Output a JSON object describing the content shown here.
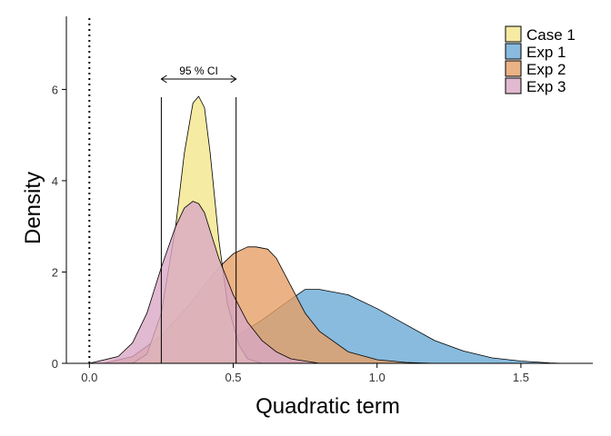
{
  "chart_data": {
    "type": "area",
    "xlabel": "Quadratic term",
    "ylabel": "Density",
    "xlim": [
      -0.08,
      1.75
    ],
    "ylim": [
      0,
      7.6
    ],
    "x_ticks": [
      0.0,
      0.5,
      1.0,
      1.5
    ],
    "x_tick_labels": [
      "0.0",
      "0.5",
      "1.0",
      "1.5"
    ],
    "y_ticks": [
      0,
      2,
      4,
      6
    ],
    "y_tick_labels": [
      "0",
      "2",
      "4",
      "6"
    ],
    "grid": false,
    "legend_position": "top-right",
    "reference_line": {
      "x": 0.0,
      "style": "dotted"
    },
    "ci": {
      "label": "95 % CI",
      "lower": 0.25,
      "upper": 0.51
    },
    "series": [
      {
        "name": "Exp 1",
        "color": "#6aaad4",
        "x": [
          0.1,
          0.2,
          0.3,
          0.4,
          0.5,
          0.6,
          0.7,
          0.75,
          0.8,
          0.9,
          1.0,
          1.1,
          1.2,
          1.3,
          1.4,
          1.5,
          1.6,
          1.65
        ],
        "y": [
          0.0,
          0.03,
          0.1,
          0.25,
          0.55,
          0.95,
          1.4,
          1.62,
          1.62,
          1.5,
          1.2,
          0.85,
          0.5,
          0.27,
          0.12,
          0.05,
          0.01,
          0.0
        ]
      },
      {
        "name": "Exp 2",
        "color": "#e6a066",
        "x": [
          0.05,
          0.15,
          0.25,
          0.35,
          0.45,
          0.5,
          0.55,
          0.58,
          0.62,
          0.65,
          0.7,
          0.75,
          0.8,
          0.9,
          1.0,
          1.1,
          1.2
        ],
        "y": [
          0.0,
          0.15,
          0.6,
          1.3,
          2.1,
          2.4,
          2.55,
          2.55,
          2.5,
          2.3,
          1.7,
          1.1,
          0.7,
          0.25,
          0.08,
          0.02,
          0.0
        ]
      },
      {
        "name": "Case 1",
        "color": "#f2e68c",
        "x": [
          0.15,
          0.2,
          0.25,
          0.3,
          0.33,
          0.36,
          0.38,
          0.4,
          0.42,
          0.45,
          0.48,
          0.52,
          0.55,
          0.6
        ],
        "y": [
          0.0,
          0.2,
          1.1,
          3.0,
          4.6,
          5.7,
          5.85,
          5.6,
          4.6,
          2.7,
          1.3,
          0.4,
          0.1,
          0.0
        ]
      },
      {
        "name": "Exp 3",
        "color": "#d9a8c4",
        "x": [
          0.0,
          0.1,
          0.15,
          0.2,
          0.25,
          0.3,
          0.33,
          0.36,
          0.38,
          0.4,
          0.42,
          0.45,
          0.5,
          0.55,
          0.6,
          0.65,
          0.7,
          0.8
        ],
        "y": [
          0.0,
          0.15,
          0.45,
          1.1,
          2.1,
          3.0,
          3.4,
          3.55,
          3.5,
          3.3,
          2.9,
          2.3,
          1.5,
          0.9,
          0.5,
          0.25,
          0.1,
          0.0
        ]
      }
    ],
    "legend": [
      "Case 1",
      "Exp 1",
      "Exp 2",
      "Exp 3"
    ]
  }
}
